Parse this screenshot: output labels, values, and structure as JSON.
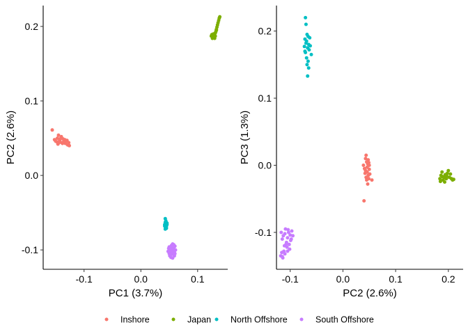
{
  "chart_data": [
    {
      "type": "scatter",
      "xlabel": "PC1 (3.7%)",
      "ylabel": "PC2 (2.6%)",
      "xlim": [
        -0.172,
        0.153
      ],
      "ylim": [
        -0.126,
        0.228
      ],
      "xticks": [
        {
          "value": -0.1,
          "label": "-0.1"
        },
        {
          "value": 0.0,
          "label": "0.0"
        },
        {
          "value": 0.1,
          "label": "0.1"
        }
      ],
      "yticks": [
        {
          "value": -0.1,
          "label": "-0.1"
        },
        {
          "value": 0.0,
          "label": "0.0"
        },
        {
          "value": 0.1,
          "label": "0.1"
        },
        {
          "value": 0.2,
          "label": "0.2"
        }
      ],
      "grid": false,
      "series": [
        {
          "name": "Inshore",
          "points": [
            [
              -0.156,
              0.061
            ],
            [
              -0.152,
              0.048
            ],
            [
              -0.15,
              0.046
            ],
            [
              -0.147,
              0.05
            ],
            [
              -0.145,
              0.054
            ],
            [
              -0.143,
              0.047
            ],
            [
              -0.141,
              0.05
            ],
            [
              -0.139,
              0.044
            ],
            [
              -0.137,
              0.049
            ],
            [
              -0.135,
              0.046
            ],
            [
              -0.133,
              0.043
            ],
            [
              -0.131,
              0.046
            ],
            [
              -0.129,
              0.041
            ],
            [
              -0.127,
              0.044
            ],
            [
              -0.146,
              0.042
            ],
            [
              -0.14,
              0.052
            ],
            [
              -0.134,
              0.048
            ],
            [
              -0.126,
              0.04
            ],
            [
              -0.148,
              0.045
            ],
            [
              -0.138,
              0.043
            ],
            [
              -0.142,
              0.049
            ],
            [
              -0.136,
              0.045
            ],
            [
              -0.13,
              0.047
            ],
            [
              -0.144,
              0.044
            ]
          ]
        },
        {
          "name": "Japan",
          "points": [
            [
              0.124,
              0.187
            ],
            [
              0.126,
              0.184
            ],
            [
              0.128,
              0.19
            ],
            [
              0.129,
              0.186
            ],
            [
              0.13,
              0.188
            ],
            [
              0.131,
              0.191
            ],
            [
              0.132,
              0.193
            ],
            [
              0.133,
              0.196
            ],
            [
              0.134,
              0.199
            ],
            [
              0.135,
              0.202
            ],
            [
              0.136,
              0.205
            ],
            [
              0.137,
              0.208
            ],
            [
              0.138,
              0.211
            ],
            [
              0.139,
              0.213
            ],
            [
              0.127,
              0.186
            ],
            [
              0.125,
              0.189
            ],
            [
              0.13,
              0.184
            ],
            [
              0.133,
              0.195
            ],
            [
              0.128,
              0.188
            ],
            [
              0.131,
              0.187
            ]
          ]
        },
        {
          "name": "North Offshore",
          "points": [
            [
              0.043,
              -0.058
            ],
            [
              0.044,
              -0.061
            ],
            [
              0.045,
              -0.063
            ],
            [
              0.043,
              -0.065
            ],
            [
              0.044,
              -0.066
            ],
            [
              0.045,
              -0.067
            ],
            [
              0.042,
              -0.068
            ],
            [
              0.043,
              -0.069
            ],
            [
              0.044,
              -0.07
            ],
            [
              0.045,
              -0.071
            ],
            [
              0.046,
              -0.064
            ],
            [
              0.042,
              -0.066
            ],
            [
              0.044,
              -0.068
            ],
            [
              0.043,
              -0.063
            ],
            [
              0.045,
              -0.069
            ],
            [
              0.044,
              -0.067
            ],
            [
              0.043,
              -0.072
            ],
            [
              0.046,
              -0.066
            ]
          ]
        },
        {
          "name": "South Offshore",
          "points": [
            [
              0.048,
              -0.102
            ],
            [
              0.05,
              -0.096
            ],
            [
              0.051,
              -0.108
            ],
            [
              0.052,
              -0.099
            ],
            [
              0.053,
              -0.104
            ],
            [
              0.054,
              -0.094
            ],
            [
              0.055,
              -0.101
            ],
            [
              0.056,
              -0.092
            ],
            [
              0.057,
              -0.106
            ],
            [
              0.058,
              -0.098
            ],
            [
              0.059,
              -0.103
            ],
            [
              0.06,
              -0.095
            ],
            [
              0.061,
              -0.1
            ],
            [
              0.053,
              -0.11
            ],
            [
              0.056,
              -0.111
            ],
            [
              0.05,
              -0.105
            ],
            [
              0.055,
              -0.097
            ],
            [
              0.058,
              -0.093
            ],
            [
              0.052,
              -0.107
            ],
            [
              0.057,
              -0.101
            ],
            [
              0.054,
              -0.099
            ],
            [
              0.059,
              -0.108
            ],
            [
              0.051,
              -0.101
            ],
            [
              0.056,
              -0.104
            ],
            [
              0.053,
              -0.096
            ],
            [
              0.06,
              -0.105
            ],
            [
              0.049,
              -0.098
            ]
          ]
        }
      ]
    },
    {
      "type": "scatter",
      "xlabel": "PC2 (2.6%)",
      "ylabel": "PC3 (1.3%)",
      "xlim": [
        -0.126,
        0.228
      ],
      "ylim": [
        -0.155,
        0.238
      ],
      "xticks": [
        {
          "value": -0.1,
          "label": "-0.1"
        },
        {
          "value": 0.0,
          "label": "0.0"
        },
        {
          "value": 0.1,
          "label": "0.1"
        },
        {
          "value": 0.2,
          "label": "0.2"
        }
      ],
      "yticks": [
        {
          "value": -0.1,
          "label": "-0.1"
        },
        {
          "value": 0.0,
          "label": "0.0"
        },
        {
          "value": 0.1,
          "label": "0.1"
        },
        {
          "value": 0.2,
          "label": "0.2"
        }
      ],
      "grid": false,
      "series": [
        {
          "name": "Inshore",
          "points": [
            [
              0.039,
              0.0
            ],
            [
              0.041,
              -0.005
            ],
            [
              0.043,
              0.01
            ],
            [
              0.044,
              0.015
            ],
            [
              0.045,
              0.005
            ],
            [
              0.046,
              -0.01
            ],
            [
              0.047,
              0.002
            ],
            [
              0.048,
              -0.015
            ],
            [
              0.049,
              -0.02
            ],
            [
              0.05,
              0.0
            ],
            [
              0.043,
              -0.008
            ],
            [
              0.045,
              -0.022
            ],
            [
              0.047,
              -0.028
            ],
            [
              0.048,
              0.008
            ],
            [
              0.04,
              -0.053
            ],
            [
              0.055,
              -0.022
            ],
            [
              0.046,
              -0.003
            ],
            [
              0.042,
              -0.012
            ],
            [
              0.05,
              -0.006
            ],
            [
              0.044,
              -0.018
            ],
            [
              0.049,
              0.004
            ],
            [
              0.051,
              -0.013
            ]
          ]
        },
        {
          "name": "Japan",
          "points": [
            [
              0.184,
              -0.02
            ],
            [
              0.186,
              -0.015
            ],
            [
              0.188,
              -0.01
            ],
            [
              0.19,
              -0.022
            ],
            [
              0.192,
              -0.018
            ],
            [
              0.194,
              -0.014
            ],
            [
              0.196,
              -0.02
            ],
            [
              0.198,
              -0.012
            ],
            [
              0.2,
              -0.008
            ],
            [
              0.202,
              -0.018
            ],
            [
              0.204,
              -0.013
            ],
            [
              0.206,
              -0.02
            ],
            [
              0.208,
              -0.022
            ],
            [
              0.21,
              -0.021
            ],
            [
              0.185,
              -0.024
            ],
            [
              0.189,
              -0.017
            ],
            [
              0.193,
              -0.025
            ],
            [
              0.197,
              -0.016
            ]
          ]
        },
        {
          "name": "North Offshore",
          "points": [
            [
              -0.071,
              0.22
            ],
            [
              -0.07,
              0.21
            ],
            [
              -0.068,
              0.195
            ],
            [
              -0.066,
              0.192
            ],
            [
              -0.072,
              0.188
            ],
            [
              -0.069,
              0.185
            ],
            [
              -0.065,
              0.18
            ],
            [
              -0.073,
              0.177
            ],
            [
              -0.067,
              0.175
            ],
            [
              -0.064,
              0.172
            ],
            [
              -0.071,
              0.168
            ],
            [
              -0.06,
              0.165
            ],
            [
              -0.069,
              0.16
            ],
            [
              -0.066,
              0.155
            ],
            [
              -0.068,
              0.15
            ],
            [
              -0.065,
              0.145
            ],
            [
              -0.067,
              0.133
            ],
            [
              -0.07,
              0.182
            ],
            [
              -0.063,
              0.19
            ],
            [
              -0.072,
              0.17
            ],
            [
              -0.062,
              0.178
            ]
          ]
        },
        {
          "name": "South Offshore",
          "points": [
            [
              -0.117,
              -0.1
            ],
            [
              -0.115,
              -0.11
            ],
            [
              -0.113,
              -0.105
            ],
            [
              -0.111,
              -0.12
            ],
            [
              -0.109,
              -0.095
            ],
            [
              -0.107,
              -0.115
            ],
            [
              -0.105,
              -0.108
            ],
            [
              -0.103,
              -0.1
            ],
            [
              -0.101,
              -0.125
            ],
            [
              -0.099,
              -0.112
            ],
            [
              -0.097,
              -0.098
            ],
            [
              -0.095,
              -0.105
            ],
            [
              -0.116,
              -0.13
            ],
            [
              -0.114,
              -0.138
            ],
            [
              -0.112,
              -0.128
            ],
            [
              -0.11,
              -0.132
            ],
            [
              -0.108,
              -0.118
            ],
            [
              -0.106,
              -0.122
            ],
            [
              -0.104,
              -0.096
            ],
            [
              -0.102,
              -0.118
            ],
            [
              -0.1,
              -0.104
            ],
            [
              -0.098,
              -0.11
            ],
            [
              -0.115,
              -0.136
            ],
            [
              -0.11,
              -0.102
            ],
            [
              -0.105,
              -0.128
            ],
            [
              -0.118,
              -0.135
            ]
          ]
        }
      ]
    }
  ],
  "legend": {
    "items": [
      {
        "label": "Inshore",
        "color": "#F8766D"
      },
      {
        "label": "Japan",
        "color": "#7CAE00"
      },
      {
        "label": "North Offshore",
        "color": "#00BFC4"
      },
      {
        "label": "South Offshore",
        "color": "#C77CFF"
      }
    ]
  },
  "colors": {
    "Inshore": "#F8766D",
    "Japan": "#7CAE00",
    "North Offshore": "#00BFC4",
    "South Offshore": "#C77CFF"
  }
}
